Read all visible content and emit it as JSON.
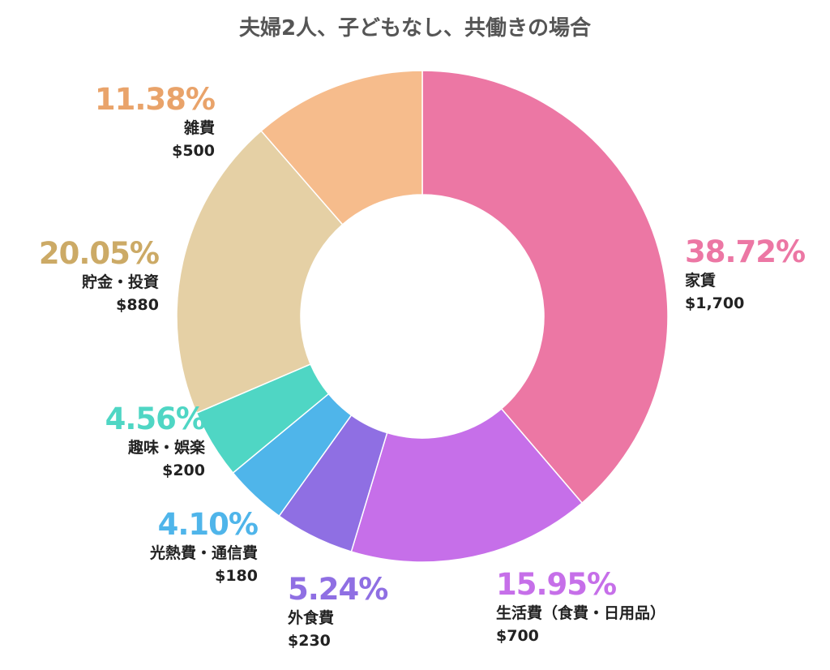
{
  "chart_data": {
    "type": "pie",
    "donut": true,
    "title": "夫婦2人、子どもなし、共働きの場合",
    "slices": [
      {
        "label": "家賃",
        "value": 1700,
        "value_label": "$1,700",
        "percent": "38.72%",
        "color": "#EC77A4",
        "text_color": "#EC77A4"
      },
      {
        "label": "生活費（食費・日用品）",
        "value": 700,
        "value_label": "$700",
        "percent": "15.95%",
        "color": "#C66FE9",
        "text_color": "#C66FE9"
      },
      {
        "label": "外食費",
        "value": 230,
        "value_label": "$230",
        "percent": "5.24%",
        "color": "#8F6FE3",
        "text_color": "#8F6FE3"
      },
      {
        "label": "光熱費・通信費",
        "value": 180,
        "value_label": "$180",
        "percent": "4.10%",
        "color": "#4FB5EA",
        "text_color": "#4FB5EA"
      },
      {
        "label": "趣味・娯楽",
        "value": 200,
        "value_label": "$200",
        "percent": "4.56%",
        "color": "#4FD6C4",
        "text_color": "#4FD6C4"
      },
      {
        "label": "貯金・投資",
        "value": 880,
        "value_label": "$880",
        "percent": "20.05%",
        "color": "#E5D0A5",
        "text_color": "#CCAA66"
      },
      {
        "label": "雑費",
        "value": 500,
        "value_label": "$500",
        "percent": "11.38%",
        "color": "#F6BC8C",
        "text_color": "#E9A36A"
      }
    ]
  }
}
